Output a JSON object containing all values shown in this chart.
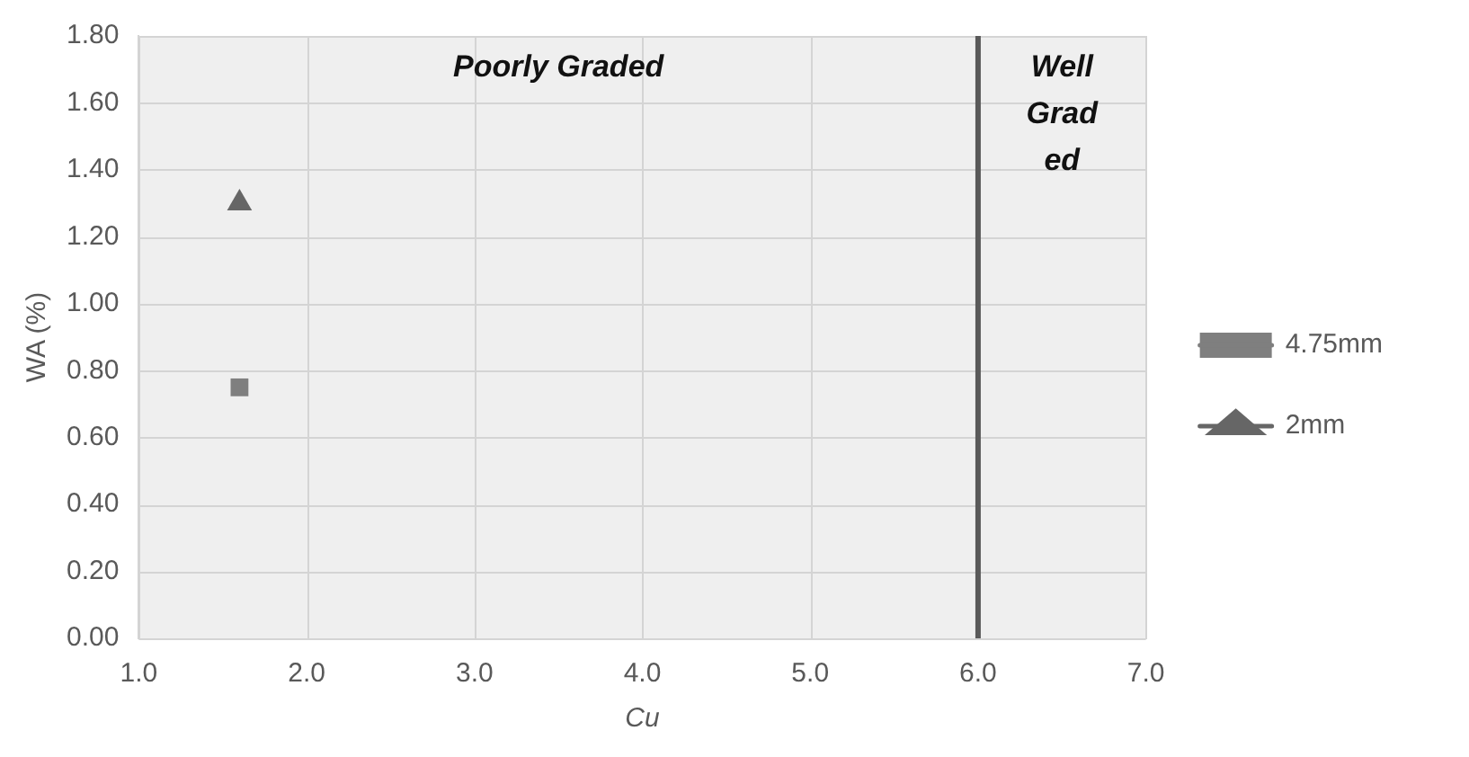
{
  "chart_data": {
    "type": "scatter",
    "xlabel": "Cu",
    "ylabel": "WA (%)",
    "xlim": [
      1.0,
      7.0
    ],
    "xticks": [
      {
        "value": 1,
        "label": "1.0"
      },
      {
        "value": 2,
        "label": "2.0"
      },
      {
        "value": 3,
        "label": "3.0"
      },
      {
        "value": 4,
        "label": "4.0"
      },
      {
        "value": 5,
        "label": "5.0"
      },
      {
        "value": 6,
        "label": "6.0"
      },
      {
        "value": 7,
        "label": "7.0"
      }
    ],
    "ylim": [
      0,
      1.8
    ],
    "yticks": [
      {
        "value": 0,
        "label": "0.00"
      },
      {
        "value": 0.2,
        "label": "0.20"
      },
      {
        "value": 0.4,
        "label": "0.40"
      },
      {
        "value": 0.6,
        "label": "0.60"
      },
      {
        "value": 0.8,
        "label": "0.80"
      },
      {
        "value": 1.0,
        "label": "1.00"
      },
      {
        "value": 1.2,
        "label": "1.20"
      },
      {
        "value": 1.4,
        "label": "1.40"
      },
      {
        "value": 1.6,
        "label": "1.60"
      },
      {
        "value": 1.8,
        "label": "1.80"
      }
    ],
    "series": [
      {
        "name": "4.75mm",
        "color": "#7f7f7f",
        "x": [
          1.6
        ],
        "values": [
          0.75
        ],
        "marker": "square"
      },
      {
        "name": "2mm",
        "color": "#666666",
        "x": [
          1.6
        ],
        "values": [
          1.3
        ],
        "marker": "triangle"
      }
    ],
    "line_style": "solid",
    "grid": true,
    "legend": "right",
    "ref_lines": [
      {
        "axis": "x",
        "value": 6.0,
        "color": "#595959"
      }
    ],
    "annotations": [
      "Poorly Graded",
      "Well Graded"
    ]
  }
}
